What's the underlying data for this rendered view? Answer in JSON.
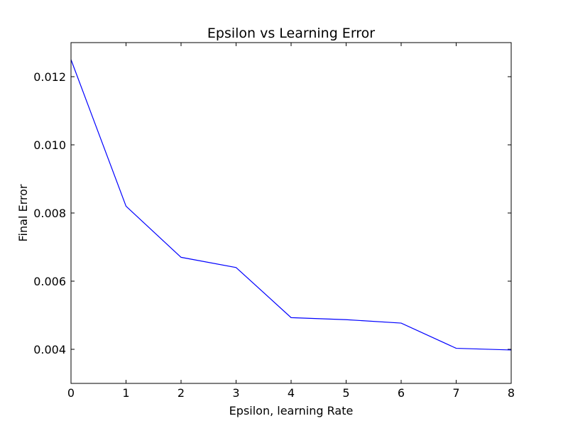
{
  "chart_data": {
    "type": "line",
    "title": "Epsilon vs  Learning Error",
    "xlabel": "Epsilon, learning Rate",
    "ylabel": "Final Error",
    "xlim": [
      0,
      8
    ],
    "ylim": [
      0.003,
      0.013
    ],
    "x_ticks": [
      0,
      1,
      2,
      3,
      4,
      5,
      6,
      7,
      8
    ],
    "x_tick_labels": [
      "0",
      "1",
      "2",
      "3",
      "4",
      "5",
      "6",
      "7",
      "8"
    ],
    "y_ticks": [
      0.004,
      0.006,
      0.008,
      0.01,
      0.012
    ],
    "y_tick_labels": [
      "0.004",
      "0.006",
      "0.008",
      "0.010",
      "0.012"
    ],
    "grid": false,
    "series": [
      {
        "color": "#0000ff",
        "x": [
          0,
          1,
          2,
          3,
          4,
          5,
          6,
          7,
          8
        ],
        "y": [
          0.0125,
          0.0082,
          0.0067,
          0.0064,
          0.00493,
          0.00487,
          0.00477,
          0.00403,
          0.00398
        ]
      }
    ]
  }
}
